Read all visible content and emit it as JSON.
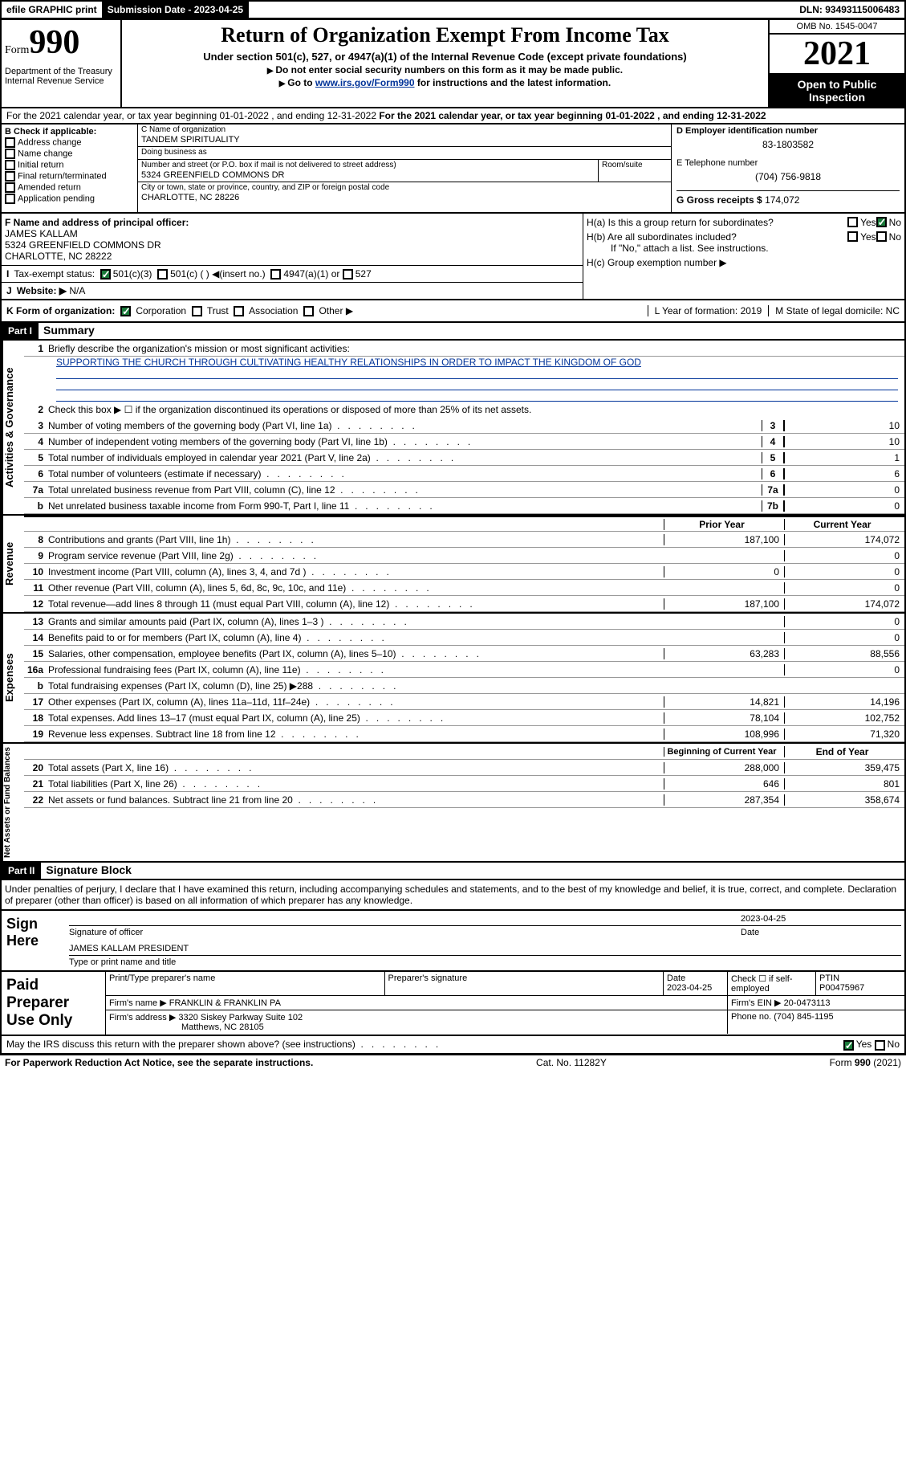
{
  "top": {
    "efile": "efile GRAPHIC print",
    "sublabel": "Submission Date - 2023-04-25",
    "dln": "DLN: 93493115006483"
  },
  "header": {
    "form_small": "Form",
    "form_num": "990",
    "dept": "Department of the Treasury\nInternal Revenue Service",
    "title": "Return of Organization Exempt From Income Tax",
    "sub1": "Under section 501(c), 527, or 4947(a)(1) of the Internal Revenue Code (except private foundations)",
    "sub2": "Do not enter social security numbers on this form as it may be made public.",
    "sub3_pre": "Go to ",
    "sub3_link": "www.irs.gov/Form990",
    "sub3_post": " for instructions and the latest information.",
    "omb": "OMB No. 1545-0047",
    "year": "2021",
    "otp": "Open to Public Inspection"
  },
  "A": "For the 2021 calendar year, or tax year beginning 01-01-2022   , and ending 12-31-2022",
  "B": {
    "label": "B Check if applicable:",
    "items": [
      "Address change",
      "Name change",
      "Initial return",
      "Final return/terminated",
      "Amended return",
      "Application pending"
    ]
  },
  "C": {
    "name_lbl": "C Name of organization",
    "name": "TANDEM SPIRITUALITY",
    "dba_lbl": "Doing business as",
    "dba": "",
    "street_lbl": "Number and street (or P.O. box if mail is not delivered to street address)",
    "room_lbl": "Room/suite",
    "street": "5324 GREENFIELD COMMONS DR",
    "city_lbl": "City or town, state or province, country, and ZIP or foreign postal code",
    "city": "CHARLOTTE, NC  28226"
  },
  "D": {
    "lbl": "D Employer identification number",
    "val": "83-1803582"
  },
  "E": {
    "lbl": "E Telephone number",
    "val": "(704) 756-9818"
  },
  "G": {
    "lbl": "G Gross receipts $",
    "val": "174,072"
  },
  "F": {
    "lbl": "F  Name and address of principal officer:",
    "name": "JAMES KALLAM",
    "addr1": "5324 GREENFIELD COMMONS DR",
    "addr2": "CHARLOTTE, NC  28222"
  },
  "H": {
    "a": "H(a)  Is this a group return for subordinates?",
    "b": "H(b)  Are all subordinates included?",
    "bnote": "If \"No,\" attach a list. See instructions.",
    "c": "H(c)  Group exemption number ▶"
  },
  "I": {
    "lbl": "Tax-exempt status:",
    "opts": [
      "501(c)(3)",
      "501(c) (  ) ◀(insert no.)",
      "4947(a)(1) or",
      "527"
    ]
  },
  "J": {
    "lbl": "Website: ▶",
    "val": "N/A"
  },
  "K": {
    "lbl": "K Form of organization:",
    "opts": [
      "Corporation",
      "Trust",
      "Association",
      "Other ▶"
    ]
  },
  "L": {
    "lbl": "L Year of formation: 2019"
  },
  "M": {
    "lbl": "M State of legal domicile: NC"
  },
  "part1": {
    "bar": "Part I",
    "title": "Summary"
  },
  "summary": {
    "line1_lbl": "Briefly describe the organization's mission or most significant activities:",
    "line1_val": "SUPPORTING THE CHURCH THROUGH CULTIVATING HEALTHY RELATIONSHIPS IN ORDER TO IMPACT THE KINGDOM OF GOD",
    "line2": "Check this box ▶ ☐  if the organization discontinued its operations or disposed of more than 25% of its net assets.",
    "lines_gov": [
      {
        "n": "3",
        "t": "Number of voting members of the governing body (Part VI, line 1a)",
        "box": "3",
        "v": "10"
      },
      {
        "n": "4",
        "t": "Number of independent voting members of the governing body (Part VI, line 1b)",
        "box": "4",
        "v": "10"
      },
      {
        "n": "5",
        "t": "Total number of individuals employed in calendar year 2021 (Part V, line 2a)",
        "box": "5",
        "v": "1"
      },
      {
        "n": "6",
        "t": "Total number of volunteers (estimate if necessary)",
        "box": "6",
        "v": "6"
      },
      {
        "n": "7a",
        "t": "Total unrelated business revenue from Part VIII, column (C), line 12",
        "box": "7a",
        "v": "0"
      },
      {
        "n": "b",
        "t": "Net unrelated business taxable income from Form 990-T, Part I, line 11",
        "box": "7b",
        "v": "0"
      }
    ],
    "col_hdrs": {
      "prior": "Prior Year",
      "current": "Current Year"
    },
    "revenue": [
      {
        "n": "8",
        "t": "Contributions and grants (Part VIII, line 1h)",
        "p": "187,100",
        "c": "174,072"
      },
      {
        "n": "9",
        "t": "Program service revenue (Part VIII, line 2g)",
        "p": "",
        "c": "0"
      },
      {
        "n": "10",
        "t": "Investment income (Part VIII, column (A), lines 3, 4, and 7d )",
        "p": "0",
        "c": "0"
      },
      {
        "n": "11",
        "t": "Other revenue (Part VIII, column (A), lines 5, 6d, 8c, 9c, 10c, and 11e)",
        "p": "",
        "c": "0"
      },
      {
        "n": "12",
        "t": "Total revenue—add lines 8 through 11 (must equal Part VIII, column (A), line 12)",
        "p": "187,100",
        "c": "174,072"
      }
    ],
    "expenses": [
      {
        "n": "13",
        "t": "Grants and similar amounts paid (Part IX, column (A), lines 1–3 )",
        "p": "",
        "c": "0"
      },
      {
        "n": "14",
        "t": "Benefits paid to or for members (Part IX, column (A), line 4)",
        "p": "",
        "c": "0"
      },
      {
        "n": "15",
        "t": "Salaries, other compensation, employee benefits (Part IX, column (A), lines 5–10)",
        "p": "63,283",
        "c": "88,556"
      },
      {
        "n": "16a",
        "t": "Professional fundraising fees (Part IX, column (A), line 11e)",
        "p": "",
        "c": "0"
      },
      {
        "n": "b",
        "t": "Total fundraising expenses (Part IX, column (D), line 25) ▶288",
        "grey": true
      },
      {
        "n": "17",
        "t": "Other expenses (Part IX, column (A), lines 11a–11d, 11f–24e)",
        "p": "14,821",
        "c": "14,196"
      },
      {
        "n": "18",
        "t": "Total expenses. Add lines 13–17 (must equal Part IX, column (A), line 25)",
        "p": "78,104",
        "c": "102,752"
      },
      {
        "n": "19",
        "t": "Revenue less expenses. Subtract line 18 from line 12",
        "p": "108,996",
        "c": "71,320"
      }
    ],
    "na_hdrs": {
      "b": "Beginning of Current Year",
      "e": "End of Year"
    },
    "netassets": [
      {
        "n": "20",
        "t": "Total assets (Part X, line 16)",
        "p": "288,000",
        "c": "359,475"
      },
      {
        "n": "21",
        "t": "Total liabilities (Part X, line 26)",
        "p": "646",
        "c": "801"
      },
      {
        "n": "22",
        "t": "Net assets or fund balances. Subtract line 21 from line 20",
        "p": "287,354",
        "c": "358,674"
      }
    ]
  },
  "part2": {
    "bar": "Part II",
    "title": "Signature Block"
  },
  "sigtext": "Under penalties of perjury, I declare that I have examined this return, including accompanying schedules and statements, and to the best of my knowledge and belief, it is true, correct, and complete. Declaration of preparer (other than officer) is based on all information of which preparer has any knowledge.",
  "sign": {
    "here": "Sign Here",
    "date": "2023-04-25",
    "siglbl": "Signature of officer",
    "datelbl": "Date",
    "name": "JAMES KALLAM  PRESIDENT",
    "namelbl": "Type or print name and title"
  },
  "prep": {
    "title": "Paid Preparer Use Only",
    "h": [
      "Print/Type preparer's name",
      "Preparer's signature",
      "Date",
      "",
      "PTIN"
    ],
    "date": "2023-04-25",
    "check": "Check ☐ if self-employed",
    "ptin": "P00475967",
    "firm_lbl": "Firm's name    ▶",
    "firm": "FRANKLIN & FRANKLIN PA",
    "ein_lbl": "Firm's EIN ▶",
    "ein": "20-0473113",
    "addr_lbl": "Firm's address ▶",
    "addr1": "3320 Siskey Parkway Suite 102",
    "addr2": "Matthews, NC  28105",
    "phone_lbl": "Phone no.",
    "phone": "(704) 845-1195"
  },
  "discuss": "May the IRS discuss this return with the preparer shown above? (see instructions)",
  "footer": {
    "pra": "For Paperwork Reduction Act Notice, see the separate instructions.",
    "cat": "Cat. No. 11282Y",
    "form": "Form 990 (2021)"
  },
  "yesno": {
    "yes": "Yes",
    "no": "No"
  },
  "vlabels": {
    "gov": "Activities & Governance",
    "rev": "Revenue",
    "exp": "Expenses",
    "na": "Net Assets or Fund Balances"
  }
}
